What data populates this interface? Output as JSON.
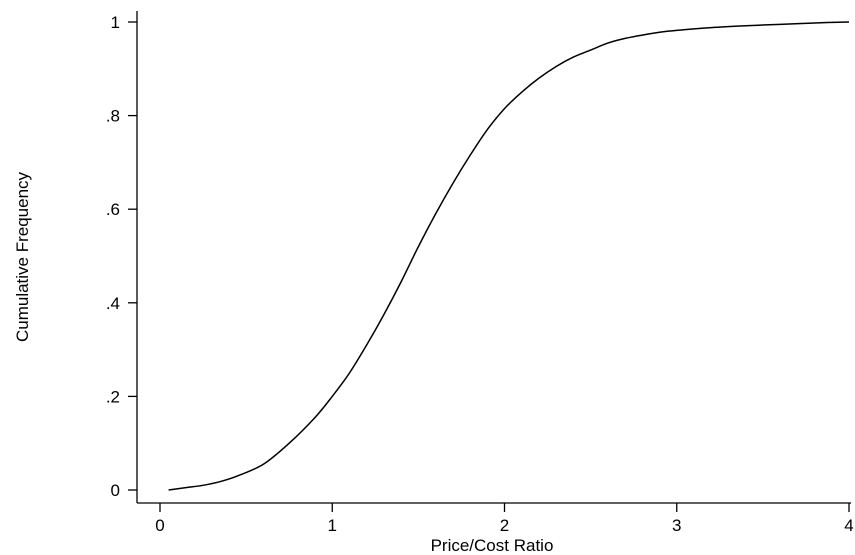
{
  "chart_data": {
    "type": "line",
    "title": "",
    "xlabel": "Price/Cost Ratio",
    "ylabel": "Cumulative Frequency",
    "xlim": [
      0,
      4
    ],
    "ylim": [
      0,
      1
    ],
    "x_ticks": [
      0,
      1,
      2,
      3,
      4
    ],
    "x_tick_labels": [
      "0",
      "1",
      "2",
      "3",
      "4"
    ],
    "y_ticks": [
      0,
      0.2,
      0.4,
      0.6,
      0.8,
      1
    ],
    "y_tick_labels": [
      "0",
      ".2",
      ".4",
      ".6",
      ".8",
      "1"
    ],
    "grid": false,
    "legend": "none",
    "series": [
      {
        "color": "#000000",
        "x": [
          0.05,
          0.15,
          0.25,
          0.35,
          0.45,
          0.6,
          0.75,
          0.9,
          1.0,
          1.1,
          1.2,
          1.3,
          1.4,
          1.5,
          1.6,
          1.7,
          1.8,
          1.9,
          2.0,
          2.1,
          2.2,
          2.3,
          2.4,
          2.5,
          2.6,
          2.7,
          2.8,
          2.9,
          3.0,
          3.2,
          3.4,
          3.6,
          3.8,
          4.0
        ],
        "y": [
          0.0,
          0.005,
          0.01,
          0.018,
          0.03,
          0.055,
          0.1,
          0.155,
          0.2,
          0.25,
          0.31,
          0.375,
          0.445,
          0.52,
          0.59,
          0.655,
          0.715,
          0.77,
          0.815,
          0.85,
          0.88,
          0.905,
          0.925,
          0.94,
          0.955,
          0.965,
          0.972,
          0.978,
          0.982,
          0.988,
          0.992,
          0.995,
          0.998,
          1.0
        ]
      }
    ]
  }
}
